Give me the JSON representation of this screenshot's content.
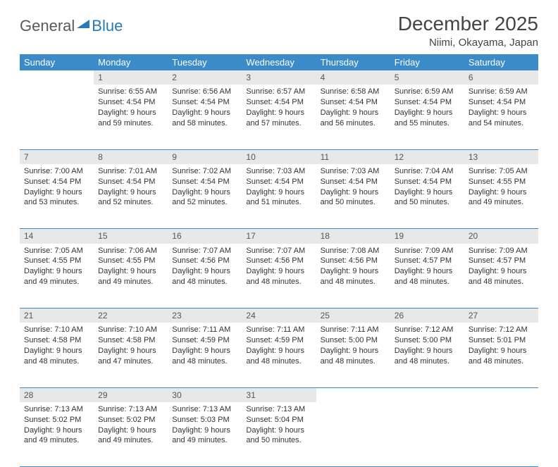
{
  "logo": {
    "part1": "General",
    "part2": "Blue"
  },
  "title": "December 2025",
  "location": "Niimi, Okayama, Japan",
  "colors": {
    "header_bg": "#3b8bc9",
    "header_text": "#ffffff",
    "daynum_bg": "#e8e8e8",
    "row_border": "#3b8bc9",
    "logo_gray": "#5a5a5a",
    "logo_blue": "#2a7ab9"
  },
  "weekdays": [
    "Sunday",
    "Monday",
    "Tuesday",
    "Wednesday",
    "Thursday",
    "Friday",
    "Saturday"
  ],
  "weeks": [
    [
      null,
      {
        "n": "1",
        "sr": "Sunrise: 6:55 AM",
        "ss": "Sunset: 4:54 PM",
        "dl": "Daylight: 9 hours and 59 minutes."
      },
      {
        "n": "2",
        "sr": "Sunrise: 6:56 AM",
        "ss": "Sunset: 4:54 PM",
        "dl": "Daylight: 9 hours and 58 minutes."
      },
      {
        "n": "3",
        "sr": "Sunrise: 6:57 AM",
        "ss": "Sunset: 4:54 PM",
        "dl": "Daylight: 9 hours and 57 minutes."
      },
      {
        "n": "4",
        "sr": "Sunrise: 6:58 AM",
        "ss": "Sunset: 4:54 PM",
        "dl": "Daylight: 9 hours and 56 minutes."
      },
      {
        "n": "5",
        "sr": "Sunrise: 6:59 AM",
        "ss": "Sunset: 4:54 PM",
        "dl": "Daylight: 9 hours and 55 minutes."
      },
      {
        "n": "6",
        "sr": "Sunrise: 6:59 AM",
        "ss": "Sunset: 4:54 PM",
        "dl": "Daylight: 9 hours and 54 minutes."
      }
    ],
    [
      {
        "n": "7",
        "sr": "Sunrise: 7:00 AM",
        "ss": "Sunset: 4:54 PM",
        "dl": "Daylight: 9 hours and 53 minutes."
      },
      {
        "n": "8",
        "sr": "Sunrise: 7:01 AM",
        "ss": "Sunset: 4:54 PM",
        "dl": "Daylight: 9 hours and 52 minutes."
      },
      {
        "n": "9",
        "sr": "Sunrise: 7:02 AM",
        "ss": "Sunset: 4:54 PM",
        "dl": "Daylight: 9 hours and 52 minutes."
      },
      {
        "n": "10",
        "sr": "Sunrise: 7:03 AM",
        "ss": "Sunset: 4:54 PM",
        "dl": "Daylight: 9 hours and 51 minutes."
      },
      {
        "n": "11",
        "sr": "Sunrise: 7:03 AM",
        "ss": "Sunset: 4:54 PM",
        "dl": "Daylight: 9 hours and 50 minutes."
      },
      {
        "n": "12",
        "sr": "Sunrise: 7:04 AM",
        "ss": "Sunset: 4:54 PM",
        "dl": "Daylight: 9 hours and 50 minutes."
      },
      {
        "n": "13",
        "sr": "Sunrise: 7:05 AM",
        "ss": "Sunset: 4:55 PM",
        "dl": "Daylight: 9 hours and 49 minutes."
      }
    ],
    [
      {
        "n": "14",
        "sr": "Sunrise: 7:05 AM",
        "ss": "Sunset: 4:55 PM",
        "dl": "Daylight: 9 hours and 49 minutes."
      },
      {
        "n": "15",
        "sr": "Sunrise: 7:06 AM",
        "ss": "Sunset: 4:55 PM",
        "dl": "Daylight: 9 hours and 49 minutes."
      },
      {
        "n": "16",
        "sr": "Sunrise: 7:07 AM",
        "ss": "Sunset: 4:56 PM",
        "dl": "Daylight: 9 hours and 48 minutes."
      },
      {
        "n": "17",
        "sr": "Sunrise: 7:07 AM",
        "ss": "Sunset: 4:56 PM",
        "dl": "Daylight: 9 hours and 48 minutes."
      },
      {
        "n": "18",
        "sr": "Sunrise: 7:08 AM",
        "ss": "Sunset: 4:56 PM",
        "dl": "Daylight: 9 hours and 48 minutes."
      },
      {
        "n": "19",
        "sr": "Sunrise: 7:09 AM",
        "ss": "Sunset: 4:57 PM",
        "dl": "Daylight: 9 hours and 48 minutes."
      },
      {
        "n": "20",
        "sr": "Sunrise: 7:09 AM",
        "ss": "Sunset: 4:57 PM",
        "dl": "Daylight: 9 hours and 48 minutes."
      }
    ],
    [
      {
        "n": "21",
        "sr": "Sunrise: 7:10 AM",
        "ss": "Sunset: 4:58 PM",
        "dl": "Daylight: 9 hours and 48 minutes."
      },
      {
        "n": "22",
        "sr": "Sunrise: 7:10 AM",
        "ss": "Sunset: 4:58 PM",
        "dl": "Daylight: 9 hours and 47 minutes."
      },
      {
        "n": "23",
        "sr": "Sunrise: 7:11 AM",
        "ss": "Sunset: 4:59 PM",
        "dl": "Daylight: 9 hours and 48 minutes."
      },
      {
        "n": "24",
        "sr": "Sunrise: 7:11 AM",
        "ss": "Sunset: 4:59 PM",
        "dl": "Daylight: 9 hours and 48 minutes."
      },
      {
        "n": "25",
        "sr": "Sunrise: 7:11 AM",
        "ss": "Sunset: 5:00 PM",
        "dl": "Daylight: 9 hours and 48 minutes."
      },
      {
        "n": "26",
        "sr": "Sunrise: 7:12 AM",
        "ss": "Sunset: 5:00 PM",
        "dl": "Daylight: 9 hours and 48 minutes."
      },
      {
        "n": "27",
        "sr": "Sunrise: 7:12 AM",
        "ss": "Sunset: 5:01 PM",
        "dl": "Daylight: 9 hours and 48 minutes."
      }
    ],
    [
      {
        "n": "28",
        "sr": "Sunrise: 7:13 AM",
        "ss": "Sunset: 5:02 PM",
        "dl": "Daylight: 9 hours and 49 minutes."
      },
      {
        "n": "29",
        "sr": "Sunrise: 7:13 AM",
        "ss": "Sunset: 5:02 PM",
        "dl": "Daylight: 9 hours and 49 minutes."
      },
      {
        "n": "30",
        "sr": "Sunrise: 7:13 AM",
        "ss": "Sunset: 5:03 PM",
        "dl": "Daylight: 9 hours and 49 minutes."
      },
      {
        "n": "31",
        "sr": "Sunrise: 7:13 AM",
        "ss": "Sunset: 5:04 PM",
        "dl": "Daylight: 9 hours and 50 minutes."
      },
      null,
      null,
      null
    ]
  ]
}
